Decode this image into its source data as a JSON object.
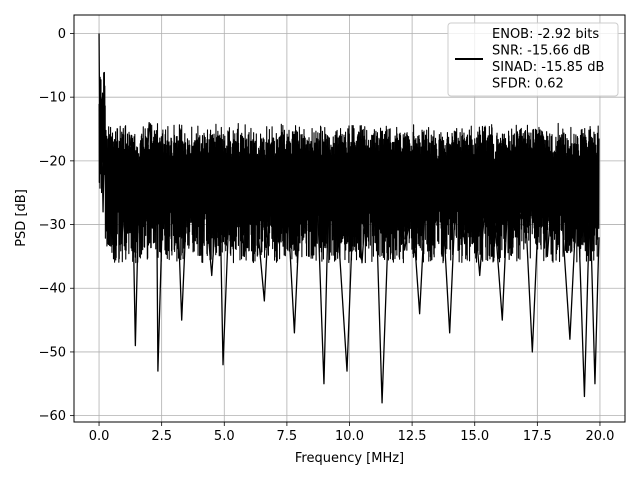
{
  "chart_data": {
    "type": "line",
    "title": "",
    "xlabel": "Frequency [MHz]",
    "ylabel": "PSD [dB]",
    "xlim": [
      -1.0,
      21.0
    ],
    "ylim": [
      -61.0,
      2.9
    ],
    "xticks": [
      0.0,
      2.5,
      5.0,
      7.5,
      10.0,
      12.5,
      15.0,
      17.5,
      20.0
    ],
    "xtick_labels": [
      "0.0",
      "2.5",
      "5.0",
      "7.5",
      "10.0",
      "12.5",
      "15.0",
      "17.5",
      "20.0"
    ],
    "yticks": [
      0,
      -10,
      -20,
      -30,
      -40,
      -50,
      -60
    ],
    "ytick_labels": [
      "0",
      "−10",
      "−20",
      "−30",
      "−40",
      "−50",
      "−60"
    ],
    "grid": true,
    "legend_position": "top-right",
    "series": [
      {
        "name": "ENOB: -2.92 bits\nSNR: -15.66 dB\nSINAD: -15.85 dB\nSFDR: 0.62",
        "color": "#000000",
        "noise_band_note": "dense noisy spectrum; upper envelope about -13 to -20 dB, typical level -20 to -35 dB, deep nulls down to about -58 dB",
        "x": [
          0.0,
          0.02,
          0.04,
          0.06,
          0.08,
          0.12,
          0.16,
          0.22,
          0.3,
          0.4,
          0.55,
          0.7,
          0.9,
          1.1,
          1.3,
          1.45,
          1.6,
          1.8,
          2.0,
          2.3,
          2.35,
          2.6,
          2.9,
          3.1,
          3.3,
          3.6,
          3.9,
          4.2,
          4.5,
          4.8,
          4.95,
          5.2,
          5.5,
          5.8,
          6.0,
          6.3,
          6.6,
          6.9,
          7.2,
          7.5,
          7.8,
          8.1,
          8.4,
          8.7,
          8.98,
          9.2,
          9.5,
          9.9,
          10.2,
          10.5,
          10.8,
          11.1,
          11.3,
          11.6,
          11.9,
          12.2,
          12.5,
          12.8,
          13.1,
          13.4,
          13.7,
          14.0,
          14.3,
          14.6,
          14.9,
          15.2,
          15.5,
          15.8,
          16.1,
          16.4,
          16.7,
          17.0,
          17.3,
          17.6,
          17.9,
          18.2,
          18.5,
          18.8,
          19.1,
          19.38,
          19.6,
          19.8,
          19.96
        ],
        "values": [
          0,
          -12,
          -8,
          -22,
          -10,
          -18,
          -28,
          -15,
          -31,
          -20,
          -26,
          -17,
          -33,
          -22,
          -16,
          -49,
          -24,
          -30,
          -14,
          -25,
          -53,
          -19,
          -29,
          -23,
          -45,
          -18,
          -31,
          -24,
          -38,
          -20,
          -52,
          -27,
          -17,
          -35,
          -22,
          -29,
          -42,
          -19,
          -33,
          -25,
          -47,
          -21,
          -30,
          -24,
          -55,
          -20,
          -28,
          -53,
          -22,
          -36,
          -18,
          -32,
          -58,
          -25,
          -19,
          -34,
          -27,
          -44,
          -21,
          -30,
          -26,
          -47,
          -20,
          -33,
          -24,
          -38,
          -22,
          -29,
          -45,
          -19,
          -31,
          -26,
          -50,
          -23,
          -35,
          -19,
          -30,
          -48,
          -24,
          -57,
          -26,
          -55,
          -32
        ]
      }
    ]
  }
}
